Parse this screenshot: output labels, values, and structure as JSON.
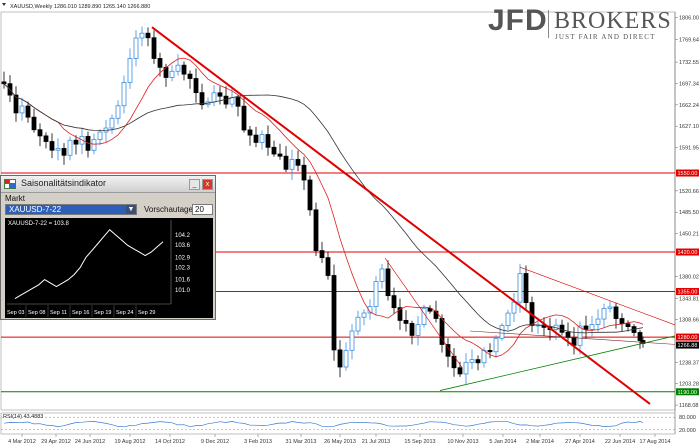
{
  "chart_title": "XAUUSD,Weekly  1286.010 1289.890 1265.140 1266.880",
  "brand": {
    "name": "JFD",
    "name2": "BROKERS",
    "tagline": "JUST FAIR AND DIRECT"
  },
  "price_scale": {
    "ticks": [
      "1806.00",
      "1769.64",
      "1732.55",
      "1697.34",
      "1662.24",
      "1627.10",
      "1591.95",
      "1520.66",
      "1485.50",
      "1450.21",
      "1380.02",
      "1343.81",
      "1308.66",
      "1238.37",
      "1203.28",
      "1168.08"
    ],
    "tags": [
      {
        "label": "1550.00",
        "price": 1550,
        "color": "#e00000"
      },
      {
        "label": "1420.00",
        "price": 1420,
        "color": "#e00000"
      },
      {
        "label": "1355.00",
        "price": 1355,
        "color": "#e00000"
      },
      {
        "label": "1280.00",
        "price": 1280,
        "color": "#e00000"
      },
      {
        "label": "1266.88",
        "price": 1266.88,
        "color": "#000000"
      },
      {
        "label": "1190.00",
        "price": 1190,
        "color": "#008000"
      }
    ]
  },
  "rsi": {
    "label": "RSI(14) 43.4883",
    "ticks": [
      "80.000",
      "20.000"
    ]
  },
  "time_axis": {
    "labels": [
      "4 Mar 2012",
      "29 Apr 2012",
      "24 Jun 2012",
      "19 Aug 2012",
      "14 Oct 2012",
      "9 Dec 2012",
      "3 Feb 2013",
      "31 Mar 2013",
      "26 May 2013",
      "21 Jul 2013",
      "15 Sep 2013",
      "10 Nov 2013",
      "5 Jan 2014",
      "2 Mar 2014",
      "27 Apr 2014",
      "22 Jun 2014",
      "17 Aug 2014"
    ]
  },
  "colors": {
    "up_candle": "#3b8fe0",
    "down_candle": "#000000",
    "ma_fast": "#e02020",
    "ma_slow": "#333333",
    "support": "#008000",
    "resistance": "#e00000",
    "rsi_line": "#3b7bd4"
  },
  "seasonal_window": {
    "title": "Saisonalitätsindikator",
    "market_label": "Markt",
    "market_value": "XAUUSD-7-22",
    "preview_label": "Vorschautage",
    "preview_value": "20",
    "series_label": "XAUUSD-7-22 = 103.8",
    "y_ticks": [
      "104.2",
      "103.6",
      "102.9",
      "102.3",
      "101.6",
      "101.0"
    ],
    "x_ticks": [
      "Sep 03",
      "Sep 08",
      "Sep 11",
      "Sep 16",
      "Sep 19",
      "Sep 24",
      "Sep 29"
    ],
    "min_btn": "_",
    "close_btn": "x",
    "close_color": "#d43a2a",
    "icon": "grid-icon",
    "chart_data": {
      "type": "line",
      "x": [
        "Sep 03",
        "Sep 04",
        "Sep 05",
        "Sep 06",
        "Sep 07",
        "Sep 08",
        "Sep 09",
        "Sep 10",
        "Sep 11",
        "Sep 12",
        "Sep 13",
        "Sep 14",
        "Sep 15",
        "Sep 16",
        "Sep 17",
        "Sep 18",
        "Sep 19",
        "Sep 20",
        "Sep 21",
        "Sep 22",
        "Sep 23",
        "Sep 24",
        "Sep 25",
        "Sep 26",
        "Sep 27",
        "Sep 28"
      ],
      "values": [
        100.5,
        100.7,
        100.9,
        101.1,
        101.3,
        101.6,
        101.4,
        101.2,
        101.4,
        101.6,
        101.9,
        102.3,
        102.9,
        103.3,
        103.7,
        104.1,
        104.5,
        104.2,
        103.9,
        103.6,
        103.4,
        103.2,
        103.0,
        103.2,
        103.5,
        103.8
      ],
      "ylim": [
        100.3,
        104.6
      ],
      "grid": false,
      "title": "",
      "xlabel": "",
      "ylabel": ""
    }
  },
  "chart_data": {
    "type": "candlestick",
    "title": "XAUUSD,Weekly",
    "price_range": [
      1160,
      1815
    ],
    "horizontal_levels": [
      1550,
      1420,
      1355,
      1280,
      1190
    ],
    "rsi_range": [
      0,
      100
    ],
    "rsi_levels": [
      80,
      20
    ]
  }
}
